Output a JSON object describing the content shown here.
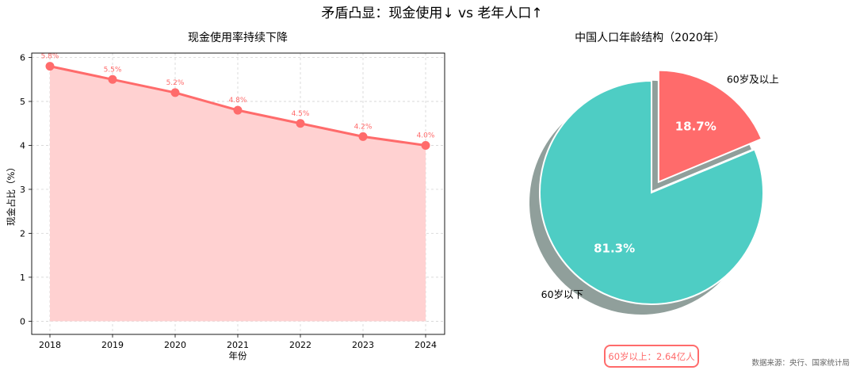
{
  "suptitle": "矛盾凸显：现金使用↓ vs 老年人口↑",
  "source": "数据来源：央行、国家统计局",
  "colors": {
    "line": "#ff6b6b",
    "fill": "#ffd1d1",
    "pie_young": "#4ecdc4",
    "pie_old": "#ff6b6b",
    "shadow": "#8a9a96"
  },
  "chart_data": [
    {
      "type": "area",
      "title": "现金使用率持续下降",
      "xlabel": "年份",
      "ylabel": "现金占比（%）",
      "x": [
        "2018",
        "2019",
        "2020",
        "2021",
        "2022",
        "2023",
        "2024"
      ],
      "series": [
        {
          "values": [
            5.8,
            5.5,
            5.2,
            4.8,
            4.5,
            4.2,
            4.0
          ],
          "labels": [
            "5.8%",
            "5.5%",
            "5.2%",
            "4.8%",
            "4.5%",
            "4.2%",
            "4.0%"
          ]
        }
      ],
      "ylim": [
        -0.3,
        6.1
      ],
      "yticks": [
        "0",
        "1",
        "2",
        "3",
        "4",
        "5",
        "6"
      ],
      "grid": true
    },
    {
      "type": "pie",
      "title": "中国人口年龄结构（2020年）",
      "slices": [
        {
          "label": "60岁以下",
          "value": 81.3,
          "pct_label": "81.3%"
        },
        {
          "label": "60岁及以上",
          "value": 18.7,
          "pct_label": "18.7%",
          "exploded": true
        }
      ],
      "shadow": true,
      "annotation": "60岁以上：2.64亿人"
    }
  ]
}
